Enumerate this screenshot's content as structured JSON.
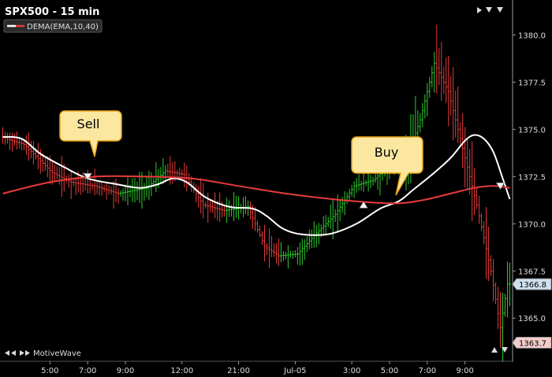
{
  "window": {
    "title": "SPX500 - 15 min",
    "branding": "MotiveWave"
  },
  "legend": [
    {
      "label": "DEMA(EMA,10,40)",
      "fast_color": "#ffffff",
      "slow_color": "#e83b3b"
    }
  ],
  "callouts": [
    {
      "label": "Sell"
    },
    {
      "label": "Buy"
    }
  ],
  "colors": {
    "background": "#000000",
    "up_bar": "#2ecc2e",
    "down_bar": "#e83b3b",
    "fast_ma": "#ffffff",
    "slow_ma": "#e83b3b",
    "axis": "#9a9a9a",
    "last_price_tag": "#cfe0ee",
    "low_price_tag": "#f3cccc",
    "callout_fill": "#fbe7a0"
  },
  "icons": [
    "nav-arrows-icon",
    "scroll-left-icon",
    "scroll-right-icon",
    "scroll-up-icon",
    "scroll-down-icon"
  ],
  "chart_data": {
    "type": "line",
    "title": "SPX500 - 15 min",
    "y_axis_side": "right",
    "ylim": [
      1362.8,
      1381.6
    ],
    "y_ticks": [
      1365.0,
      1367.5,
      1370.0,
      1372.5,
      1375.0,
      1377.5,
      1380.0
    ],
    "y_tick_labels": [
      "1365.0",
      "1367.5",
      "1370.0",
      "1372.5",
      "1375.0",
      "1377.5",
      "1380.0"
    ],
    "price_tags": [
      {
        "value": 1366.8,
        "label": "1366.8",
        "kind": "last"
      },
      {
        "value": 1363.7,
        "label": "1363.7",
        "kind": "low"
      }
    ],
    "x_tick_labels": [
      {
        "label": "5:00",
        "bar": 20
      },
      {
        "label": "7:00",
        "bar": 36
      },
      {
        "label": "9:00",
        "bar": 52
      },
      {
        "label": "12:00",
        "bar": 76
      },
      {
        "label": "21:00",
        "bar": 100
      },
      {
        "label": "Jul-05",
        "bar": 124
      },
      {
        "label": "3:00",
        "bar": 148
      },
      {
        "label": "5:00",
        "bar": 164
      },
      {
        "label": "7:00",
        "bar": 180
      },
      {
        "label": "9:00",
        "bar": 196
      }
    ],
    "bar_count": 216,
    "price_anchors": [
      [
        0,
        1374.6
      ],
      [
        10,
        1374.2
      ],
      [
        22,
        1372.7
      ],
      [
        30,
        1372.2
      ],
      [
        40,
        1372.0
      ],
      [
        50,
        1371.6
      ],
      [
        62,
        1371.9
      ],
      [
        70,
        1372.8
      ],
      [
        78,
        1372.6
      ],
      [
        86,
        1371.0
      ],
      [
        95,
        1370.7
      ],
      [
        105,
        1370.9
      ],
      [
        112,
        1368.8
      ],
      [
        118,
        1368.3
      ],
      [
        126,
        1368.4
      ],
      [
        134,
        1369.5
      ],
      [
        142,
        1370.5
      ],
      [
        150,
        1372.0
      ],
      [
        158,
        1372.3
      ],
      [
        166,
        1373.2
      ],
      [
        172,
        1373.4
      ],
      [
        178,
        1375.5
      ],
      [
        184,
        1378.5
      ],
      [
        190,
        1377.0
      ],
      [
        196,
        1374.0
      ],
      [
        202,
        1371.0
      ],
      [
        208,
        1367.5
      ],
      [
        212,
        1364.5
      ],
      [
        215,
        1366.8
      ]
    ],
    "series": [
      {
        "name": "DEMA(EMA,10,40)",
        "role": "fast",
        "points": [
          [
            0,
            1374.6
          ],
          [
            8,
            1374.5
          ],
          [
            16,
            1373.7
          ],
          [
            26,
            1373.0
          ],
          [
            36,
            1372.4
          ],
          [
            48,
            1372.1
          ],
          [
            58,
            1371.9
          ],
          [
            66,
            1372.1
          ],
          [
            72,
            1372.4
          ],
          [
            78,
            1372.2
          ],
          [
            86,
            1371.4
          ],
          [
            96,
            1370.9
          ],
          [
            106,
            1370.8
          ],
          [
            112,
            1370.4
          ],
          [
            118,
            1369.8
          ],
          [
            124,
            1369.5
          ],
          [
            132,
            1369.4
          ],
          [
            140,
            1369.5
          ],
          [
            150,
            1370.0
          ],
          [
            160,
            1370.8
          ],
          [
            168,
            1371.2
          ],
          [
            174,
            1371.8
          ],
          [
            182,
            1372.6
          ],
          [
            190,
            1373.5
          ],
          [
            196,
            1374.4
          ],
          [
            200,
            1374.7
          ],
          [
            204,
            1374.5
          ],
          [
            208,
            1373.8
          ],
          [
            212,
            1372.4
          ],
          [
            215,
            1371.3
          ]
        ]
      },
      {
        "name": "DEMA(EMA,10,40)",
        "role": "slow",
        "points": [
          [
            0,
            1371.6
          ],
          [
            20,
            1372.2
          ],
          [
            40,
            1372.5
          ],
          [
            60,
            1372.5
          ],
          [
            80,
            1372.4
          ],
          [
            100,
            1372.0
          ],
          [
            120,
            1371.6
          ],
          [
            140,
            1371.3
          ],
          [
            160,
            1371.1
          ],
          [
            170,
            1371.1
          ],
          [
            180,
            1371.3
          ],
          [
            190,
            1371.6
          ],
          [
            200,
            1371.9
          ],
          [
            208,
            1372.0
          ],
          [
            215,
            1371.9
          ]
        ]
      }
    ],
    "signals": [
      {
        "type": "sell",
        "bar": 36,
        "value": 1372.5
      },
      {
        "type": "buy",
        "bar": 153,
        "value": 1371.0
      },
      {
        "type": "sell",
        "bar": 211,
        "value": 1372.0
      }
    ],
    "grid": false
  }
}
